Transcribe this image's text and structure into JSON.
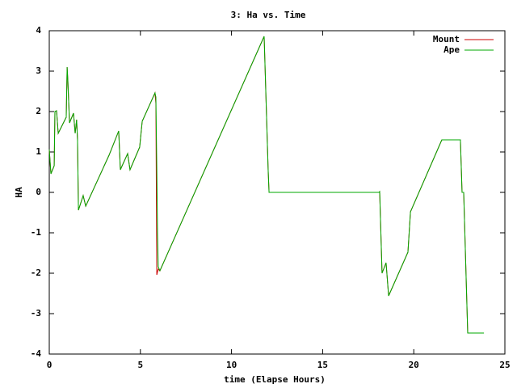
{
  "chart_data": {
    "type": "line",
    "title": "3: Ha vs. Time",
    "x_label": "time (Elapse Hours)",
    "y_label": "HA",
    "x": [
      0,
      0.09,
      0.27,
      0.31,
      0.4,
      0.49,
      0.93,
      0.98,
      1.02,
      1.11,
      1.33,
      1.42,
      1.5,
      1.55,
      1.6,
      1.86,
      2.0,
      3.28,
      3.81,
      3.9,
      4.3,
      4.43,
      4.96,
      5.1,
      5.8,
      5.85,
      5.9,
      5.94,
      5.98,
      6.07,
      11.79,
      12.01,
      12.06,
      18.09,
      18.13,
      18.26,
      18.48,
      18.62,
      19.68,
      19.82,
      21.54,
      22.56,
      22.65,
      22.74,
      22.96,
      23.85
    ],
    "series": [
      {
        "name": "Mount",
        "color": "#cc0000",
        "values": [
          1.06,
          0.46,
          0.66,
          2.0,
          2.02,
          1.46,
          1.86,
          3.1,
          2.76,
          1.72,
          1.96,
          1.46,
          1.8,
          1.3,
          -0.44,
          -0.08,
          -0.34,
          0.92,
          1.52,
          0.56,
          0.96,
          0.56,
          1.12,
          1.76,
          2.46,
          2.2,
          -2.04,
          -1.96,
          -1.9,
          -1.94,
          3.86,
          0.56,
          0,
          0,
          0.02,
          -2,
          -1.74,
          -2.56,
          -1.48,
          -0.48,
          1.3,
          1.3,
          0,
          0,
          -3.48,
          -3.48
        ]
      },
      {
        "name": "Ape",
        "color": "#00aa00",
        "values": [
          1.06,
          0.46,
          0.66,
          2.0,
          2.02,
          1.46,
          1.86,
          3.1,
          2.76,
          1.72,
          1.96,
          1.46,
          1.8,
          1.3,
          -0.44,
          -0.08,
          -0.34,
          0.92,
          1.52,
          0.56,
          0.96,
          0.56,
          1.12,
          1.76,
          2.46,
          2.36,
          0.6,
          -1.04,
          -1.84,
          -1.94,
          3.86,
          0.56,
          0,
          0,
          0.02,
          -2,
          -1.74,
          -2.56,
          -1.48,
          -0.48,
          1.3,
          1.3,
          0,
          0,
          -3.48,
          -3.48
        ]
      }
    ],
    "xlim": [
      0,
      25
    ],
    "xticks": [
      0,
      5,
      10,
      15,
      20,
      25
    ],
    "ylim": [
      -4,
      4
    ],
    "yticks": [
      -4,
      -3,
      -2,
      -1,
      0,
      1,
      2,
      3,
      4
    ],
    "grid": false,
    "legend": "top-right"
  }
}
